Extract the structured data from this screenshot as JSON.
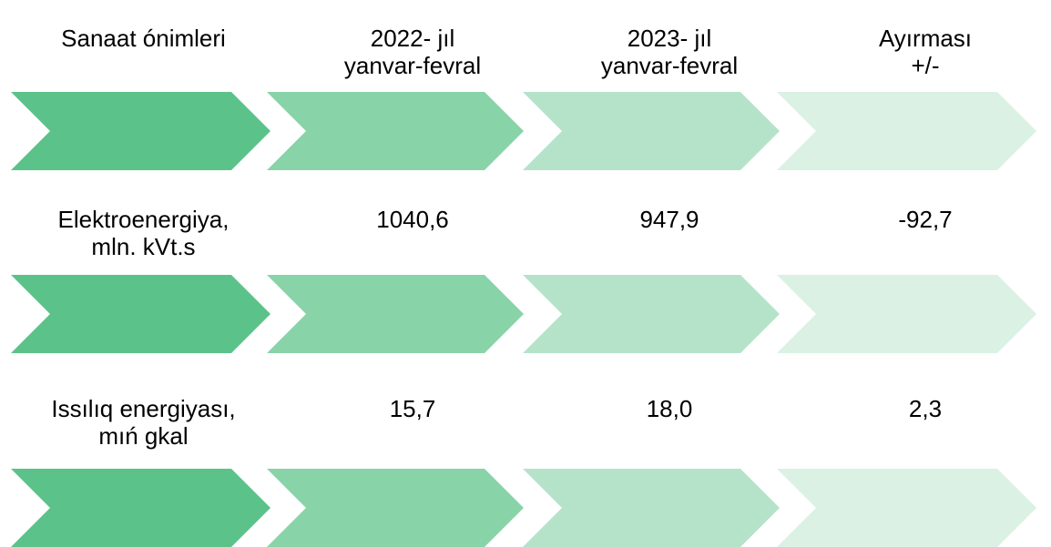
{
  "chart_data": {
    "type": "table",
    "headers": [
      [
        "Sanaat ónimleri"
      ],
      [
        "2022- jıl",
        "yanvar-fevral"
      ],
      [
        "2023- jıl",
        "yanvar-fevral"
      ],
      [
        "Ayırması",
        "+/-"
      ]
    ],
    "rows": [
      {
        "product": [
          "Elektroenergiya,",
          "mln. kVt.s"
        ],
        "v2022": "1040,6",
        "v2023": "947,9",
        "difference": "-92,7"
      },
      {
        "product": [
          "Issılıq energiyası,",
          "mıń  gkal"
        ],
        "v2022": "15,7",
        "v2023": "18,0",
        "difference": "2,3"
      }
    ]
  },
  "colors": {
    "chevron_1": "#5bc28a",
    "chevron_2": "#89d3a9",
    "chevron_3": "#b5e3c9",
    "chevron_4": "#daf1e4",
    "text": "#000000"
  }
}
